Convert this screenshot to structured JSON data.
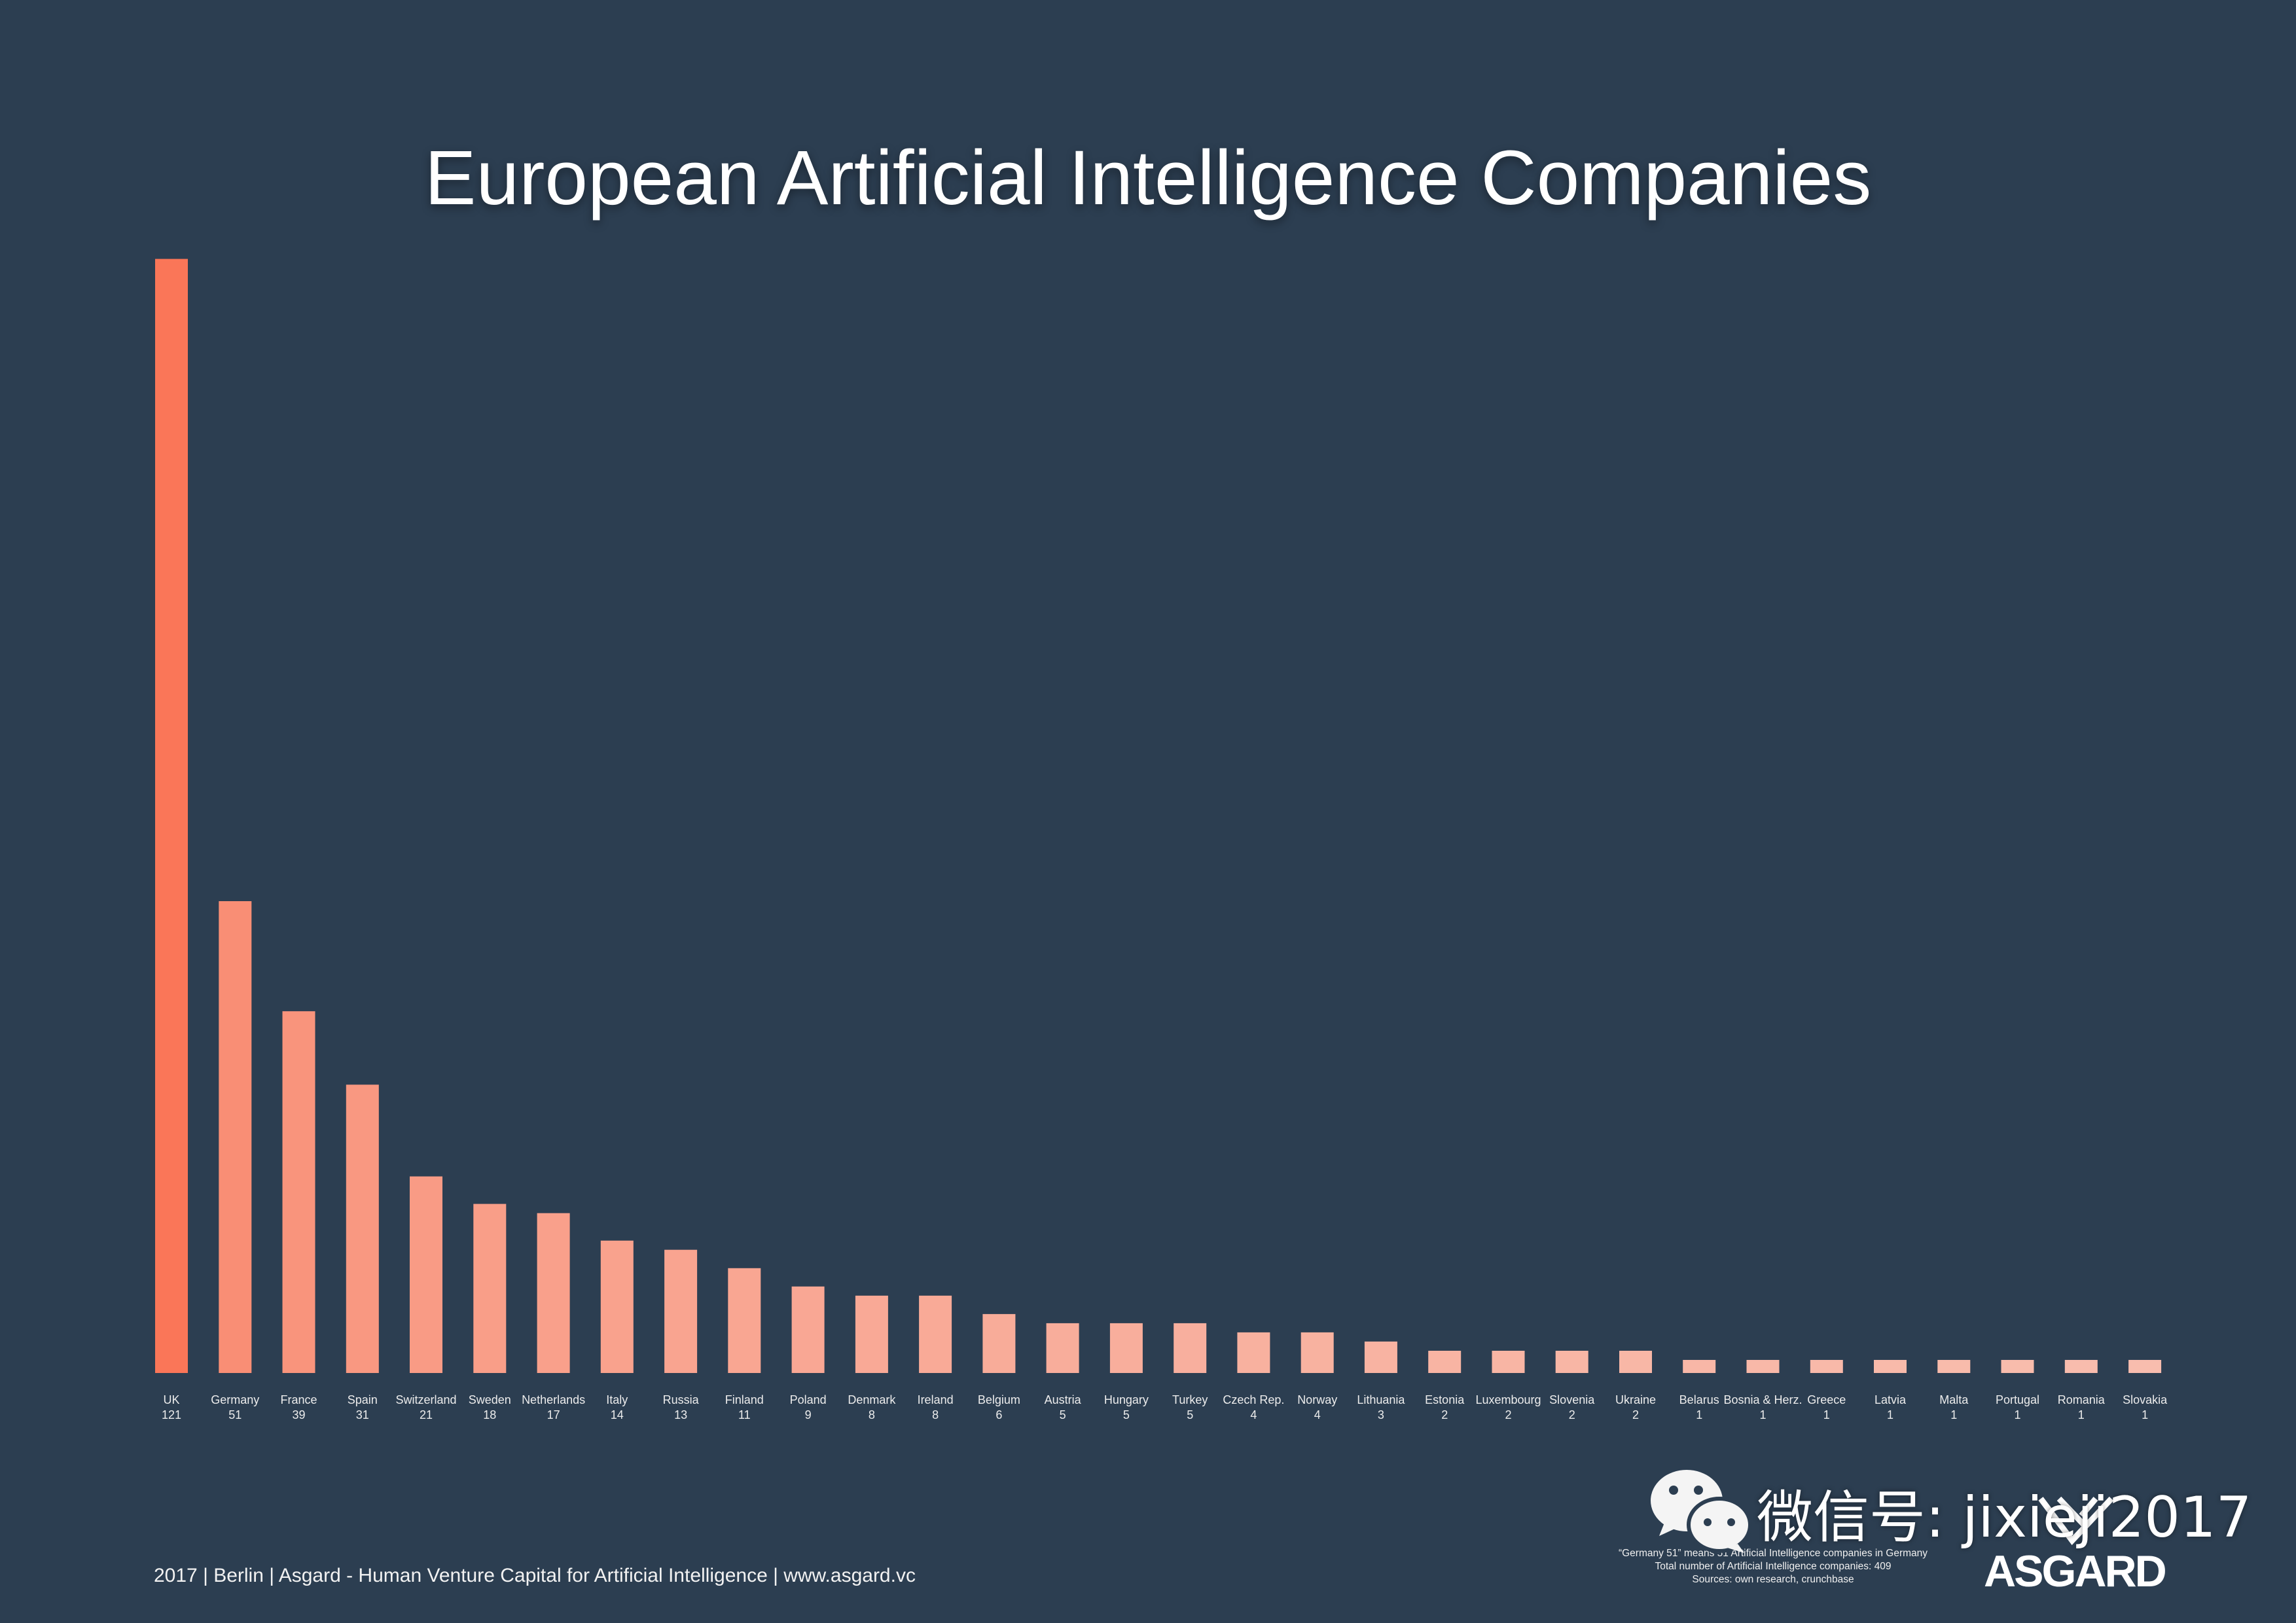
{
  "chart_data": {
    "type": "bar",
    "title": "European Artificial Intelligence Companies",
    "categories": [
      "UK",
      "Germany",
      "France",
      "Spain",
      "Switzerland",
      "Sweden",
      "Netherlands",
      "Italy",
      "Russia",
      "Finland",
      "Poland",
      "Denmark",
      "Ireland",
      "Belgium",
      "Austria",
      "Hungary",
      "Turkey",
      "Czech Rep.",
      "Norway",
      "Lithuania",
      "Estonia",
      "Luxembourg",
      "Slovenia",
      "Ukraine",
      "Belarus",
      "Bosnia & Herz.",
      "Greece",
      "Latvia",
      "Malta",
      "Portugal",
      "Romania",
      "Slovakia"
    ],
    "values": [
      121,
      51,
      39,
      31,
      21,
      18,
      17,
      14,
      13,
      11,
      9,
      8,
      8,
      6,
      5,
      5,
      5,
      4,
      4,
      3,
      2,
      2,
      2,
      2,
      1,
      1,
      1,
      1,
      1,
      1,
      1,
      1
    ],
    "grid": false,
    "legend": false,
    "data_labels": true,
    "colors": {
      "start": "#FA7658",
      "end": "#F8BDAE"
    }
  },
  "theme": {
    "background": "#2C3E51",
    "text": "#FFFFFF"
  },
  "footer": {
    "credit": "2017 | Berlin | Asgard - Human Venture Capital for Artificial Intelligence | www.asgard.vc"
  },
  "notes": [
    "“Germany 51” means 51 Artificial Intelligence companies in Germany",
    "Total number of Artificial Intelligence companies: 409",
    "Sources: own research, crunchbase"
  ],
  "logo": {
    "text": "ASGARD",
    "icon": "asgard-mark-icon"
  },
  "watermark": {
    "text": "微信号: jixieji2017",
    "icon": "wechat-icon"
  }
}
